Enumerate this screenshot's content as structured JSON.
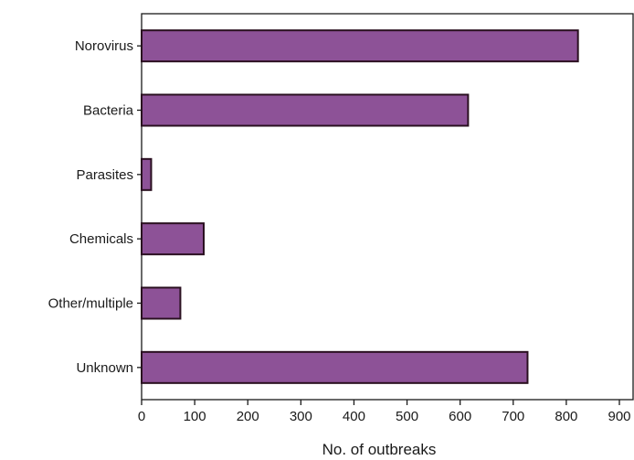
{
  "chart_data": {
    "type": "bar",
    "orientation": "horizontal",
    "categories": [
      "Norovirus",
      "Bacteria",
      "Parasites",
      "Chemicals",
      "Other/multiple",
      "Unknown"
    ],
    "values": [
      822,
      615,
      18,
      117,
      73,
      727
    ],
    "xlabel": "No. of outbreaks",
    "ylabel": "",
    "xlim": [
      0,
      900
    ],
    "xticks": [
      "0",
      "100",
      "200",
      "300",
      "400",
      "500",
      "600",
      "700",
      "800",
      "900"
    ],
    "grid": false,
    "colors": {
      "bar_fill": "#8d5297",
      "bar_stroke": "#2a1020",
      "axis": "#1a1a1a"
    }
  }
}
